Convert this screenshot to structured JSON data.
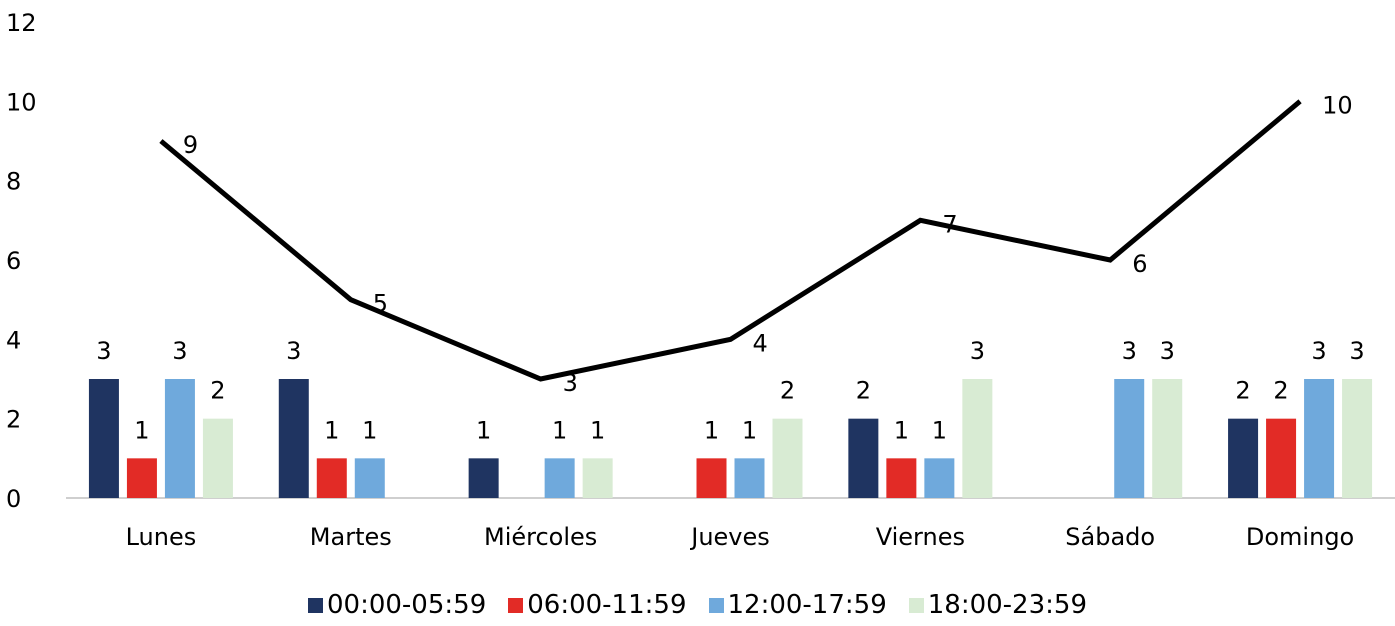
{
  "chart_data": {
    "type": "bar",
    "categories": [
      "Lunes",
      "Martes",
      "Miércoles",
      "Jueves",
      "Viernes",
      "Sábado",
      "Domingo"
    ],
    "series": [
      {
        "name": "00:00-05:59",
        "color": "#1f3461",
        "values": [
          3,
          3,
          1,
          0,
          2,
          0,
          2
        ]
      },
      {
        "name": "06:00-11:59",
        "color": "#e22b26",
        "values": [
          1,
          1,
          0,
          1,
          1,
          0,
          2
        ]
      },
      {
        "name": "12:00-17:59",
        "color": "#6fa9dc",
        "values": [
          3,
          1,
          1,
          1,
          1,
          3,
          3
        ]
      },
      {
        "name": "18:00-23:59",
        "color": "#d8ebd3",
        "values": [
          2,
          0,
          1,
          2,
          3,
          3,
          3
        ]
      }
    ],
    "line_series": {
      "type": "line",
      "color": "#000000",
      "values": [
        9,
        5,
        3,
        4,
        7,
        6,
        10
      ]
    },
    "yticks": [
      "0",
      "2",
      "4",
      "6",
      "8",
      "10",
      "12"
    ],
    "ylim": [
      0,
      12
    ],
    "grid": false,
    "legend_position": "bottom"
  }
}
